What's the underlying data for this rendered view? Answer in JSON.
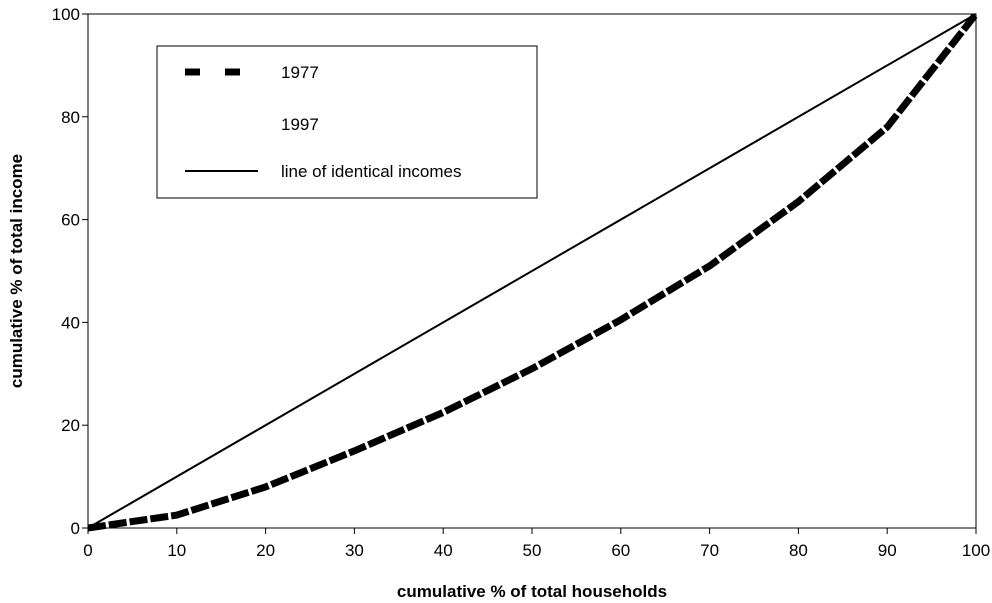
{
  "chart_data": {
    "type": "line",
    "xlabel": "cumulative % of total households",
    "ylabel": "cumulative % of total income",
    "xlim": [
      0,
      100
    ],
    "ylim": [
      0,
      100
    ],
    "x_ticks": [
      "0",
      "10",
      "20",
      "30",
      "40",
      "50",
      "60",
      "70",
      "80",
      "90",
      "100"
    ],
    "y_ticks": [
      "0",
      "20",
      "40",
      "60",
      "80",
      "100"
    ],
    "grid": false,
    "legend_position": "top-left inside",
    "series": [
      {
        "name": "1977",
        "style": "dashed",
        "color": "#000000",
        "x": [
          0,
          10,
          20,
          30,
          40,
          50,
          60,
          70,
          80,
          90,
          100
        ],
        "y": [
          0,
          2.5,
          8,
          15,
          22.5,
          31,
          40.5,
          51,
          63.5,
          78,
          100
        ]
      },
      {
        "name": "1997",
        "style": "dashed",
        "color": "#000000",
        "x": [
          0,
          10,
          20,
          30,
          40,
          50,
          60,
          70,
          80,
          90,
          100
        ],
        "y": [
          0,
          2.5,
          8,
          15,
          22.5,
          31,
          40.5,
          51,
          63.5,
          78,
          100
        ]
      },
      {
        "name": "line of identical incomes",
        "style": "solid",
        "color": "#000000",
        "x": [
          0,
          100
        ],
        "y": [
          0,
          100
        ]
      }
    ]
  }
}
